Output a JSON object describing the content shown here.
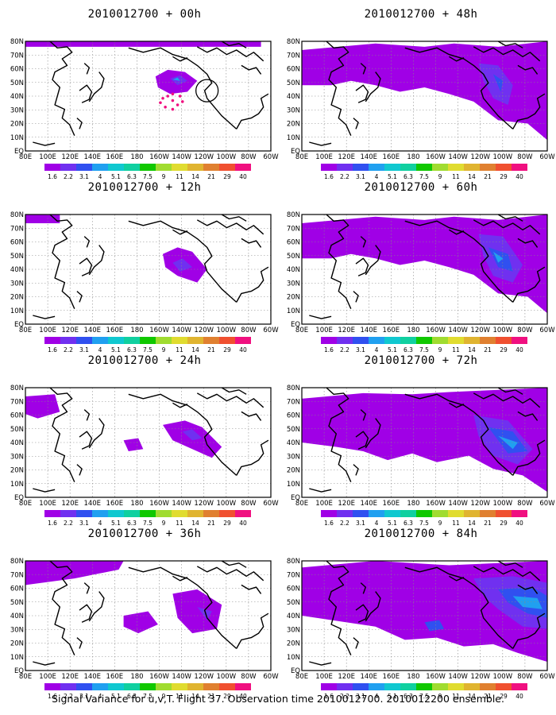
{
  "panels": [
    {
      "title": "2010012700 + 00h"
    },
    {
      "title": "2010012700 + 48h"
    },
    {
      "title": "2010012700 + 12h"
    },
    {
      "title": "2010012700 + 60h"
    },
    {
      "title": "2010012700 + 24h"
    },
    {
      "title": "2010012700 + 72h"
    },
    {
      "title": "2010012700 + 36h"
    },
    {
      "title": "2010012700 + 84h"
    }
  ],
  "lon_labels": [
    "80E",
    "100E",
    "120E",
    "140E",
    "160E",
    "180",
    "160W",
    "140W",
    "120W",
    "100W",
    "80W",
    "60W"
  ],
  "lat_labels": [
    "80N",
    "70N",
    "60N",
    "50N",
    "40N",
    "30N",
    "20N",
    "10N",
    "EQ"
  ],
  "colorbar": {
    "colors": [
      "#a000e6",
      "#7030f0",
      "#3050f0",
      "#20a0f0",
      "#10c8d0",
      "#10d0a0",
      "#10c800",
      "#a0dc30",
      "#e0dc30",
      "#e0b430",
      "#e08030",
      "#f05030",
      "#f01080"
    ],
    "labels": [
      "1.6",
      "2.2",
      "3.1",
      "4",
      "5.1",
      "6.3",
      "7.5",
      "9",
      "11",
      "14",
      "21",
      "29",
      "40"
    ]
  },
  "footer": "Signal Variance for u,v,T. Flight 37. Observation time 2010012700. 2010012200 ensemble."
}
